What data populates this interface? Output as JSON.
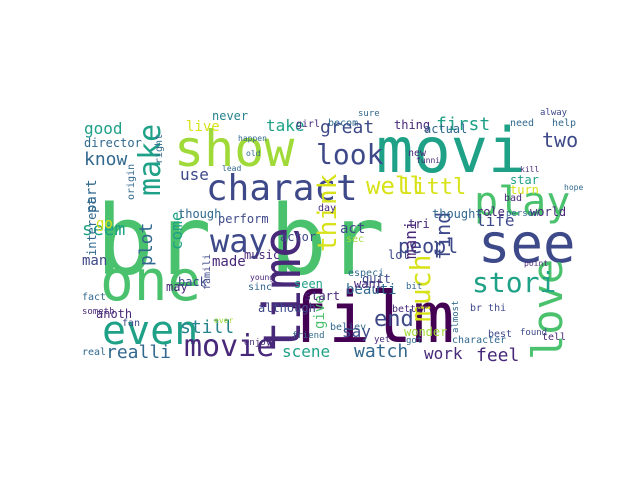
{
  "palette": {
    "yellow": "#d8e219",
    "lime": "#a0da39",
    "green": "#4ac16d",
    "teal": "#1fa187",
    "cyan": "#26828e",
    "blue": "#31688e",
    "indigo": "#3e4989",
    "purple": "#482878",
    "dark": "#440154"
  },
  "words": [
    {
      "t": "br br",
      "color": "green"
    },
    {
      "t": "film",
      "color": "dark"
    },
    {
      "t": "movi",
      "color": "teal"
    },
    {
      "t": "one",
      "color": "green"
    },
    {
      "t": "show",
      "color": "lime"
    },
    {
      "t": "time",
      "color": "purple"
    },
    {
      "t": "see",
      "color": "indigo"
    },
    {
      "t": "even",
      "color": "teal"
    },
    {
      "t": "play",
      "color": "green"
    },
    {
      "t": "love",
      "color": "green"
    },
    {
      "t": "charact",
      "color": "indigo"
    },
    {
      "t": "movie",
      "color": "purple"
    },
    {
      "t": "look",
      "color": "indigo"
    },
    {
      "t": "way",
      "color": "indigo"
    },
    {
      "t": "make",
      "color": "teal"
    },
    {
      "t": "think",
      "color": "yellow"
    },
    {
      "t": "stori",
      "color": "teal"
    },
    {
      "t": "much",
      "color": "yellow"
    },
    {
      "t": "well",
      "color": "yellow"
    },
    {
      "t": "littl",
      "color": "yellow"
    },
    {
      "t": "realli",
      "color": "blue"
    },
    {
      "t": "still",
      "color": "cyan"
    },
    {
      "t": "great",
      "color": "indigo"
    },
    {
      "t": "know",
      "color": "blue"
    },
    {
      "t": "good",
      "color": "teal"
    },
    {
      "t": "plot",
      "color": "blue"
    },
    {
      "t": "end",
      "color": "indigo"
    },
    {
      "t": "peopl",
      "color": "indigo"
    },
    {
      "t": "two",
      "color": "indigo"
    },
    {
      "t": "watch",
      "color": "blue"
    },
    {
      "t": "scene",
      "color": "teal"
    },
    {
      "t": "feel",
      "color": "purple"
    },
    {
      "t": "work",
      "color": "purple"
    },
    {
      "t": "find",
      "color": "indigo"
    },
    {
      "t": "mani",
      "color": "purple"
    },
    {
      "t": "first",
      "color": "teal"
    },
    {
      "t": "seem",
      "color": "teal"
    },
    {
      "t": "come",
      "color": "teal"
    },
    {
      "t": "life",
      "color": "indigo"
    },
    {
      "t": "say",
      "color": "indigo"
    },
    {
      "t": "made",
      "color": "purple"
    },
    {
      "t": "use",
      "color": "indigo"
    },
    {
      "t": "take",
      "color": "teal"
    },
    {
      "t": "live",
      "color": "yellow"
    },
    {
      "t": "never",
      "color": "cyan"
    },
    {
      "t": "act",
      "color": "indigo"
    },
    {
      "t": "give",
      "color": "green"
    },
    {
      "t": "man",
      "color": "indigo"
    },
    {
      "t": "part",
      "color": "blue"
    },
    {
      "t": "go",
      "color": "yellow"
    },
    {
      "t": "may",
      "color": "purple"
    },
    {
      "t": "thing",
      "color": "purple"
    },
    {
      "t": "actual",
      "color": "blue"
    },
    {
      "t": "director",
      "color": "blue"
    },
    {
      "t": "perform",
      "color": "indigo"
    },
    {
      "t": "music",
      "color": "purple"
    },
    {
      "t": "beauti",
      "color": "blue"
    },
    {
      "t": "want",
      "color": "purple"
    },
    {
      "t": "role",
      "color": "purple"
    },
    {
      "t": "world",
      "color": "purple"
    },
    {
      "t": "seen",
      "color": "teal"
    },
    {
      "t": "star",
      "color": "teal"
    },
    {
      "t": "turn",
      "color": "yellow"
    },
    {
      "t": "thought",
      "color": "blue"
    },
    {
      "t": "wonder",
      "color": "lime"
    },
    {
      "t": "believ",
      "color": "blue"
    },
    {
      "t": "start",
      "color": "purple"
    },
    {
      "t": "fact",
      "color": "blue"
    },
    {
      "t": "anoth",
      "color": "purple"
    },
    {
      "t": "interest",
      "color": "blue"
    },
    {
      "t": "back",
      "color": "indigo"
    },
    {
      "t": "famili",
      "color": "indigo"
    },
    {
      "t": "sinc",
      "color": "blue"
    },
    {
      "t": "although",
      "color": "indigo"
    },
    {
      "t": "quit",
      "color": "indigo"
    },
    {
      "t": "becom",
      "color": "blue"
    },
    {
      "t": "right",
      "color": "blue"
    },
    {
      "t": "origin",
      "color": "blue"
    },
    {
      "t": "though",
      "color": "blue"
    },
    {
      "t": "actor",
      "color": "indigo"
    },
    {
      "t": "girl",
      "color": "purple"
    },
    {
      "t": "lot",
      "color": "indigo"
    },
    {
      "t": "day",
      "color": "purple"
    },
    {
      "t": "especi",
      "color": "blue"
    },
    {
      "t": "better",
      "color": "purple"
    },
    {
      "t": "new",
      "color": "purple"
    },
    {
      "t": "bad",
      "color": "purple"
    },
    {
      "t": "help",
      "color": "blue"
    },
    {
      "t": "need",
      "color": "blue"
    },
    {
      "t": "best",
      "color": "indigo"
    },
    {
      "t": "tell",
      "color": "purple"
    },
    {
      "t": "real",
      "color": "blue"
    },
    {
      "t": "fan",
      "color": "indigo"
    },
    {
      "t": "someth",
      "color": "purple"
    },
    {
      "t": "sec",
      "color": "lime"
    },
    {
      "t": "tri",
      "color": "purple"
    },
    {
      "t": "friend",
      "color": "blue"
    },
    {
      "t": "enjoy",
      "color": "purple"
    },
    {
      "t": "bit",
      "color": "blue"
    },
    {
      "t": "almost",
      "color": "blue"
    },
    {
      "t": "found",
      "color": "indigo"
    },
    {
      "t": "alway",
      "color": "indigo"
    },
    {
      "t": "person",
      "color": "blue"
    },
    {
      "t": "br thi",
      "color": "indigo"
    },
    {
      "t": "character",
      "color": "blue"
    },
    {
      "t": "yet",
      "color": "purple"
    },
    {
      "t": "got",
      "color": "blue"
    },
    {
      "t": "sure",
      "color": "blue"
    },
    {
      "t": "young",
      "color": "purple"
    },
    {
      "t": "funni",
      "color": "purple"
    },
    {
      "t": "ever",
      "color": "lime"
    },
    {
      "t": "old",
      "color": "blue"
    },
    {
      "t": "happen",
      "color": "blue"
    },
    {
      "t": "lead",
      "color": "blue"
    },
    {
      "t": "kill",
      "color": "purple"
    },
    {
      "t": "point",
      "color": "purple"
    },
    {
      "t": "hope",
      "color": "blue"
    }
  ]
}
